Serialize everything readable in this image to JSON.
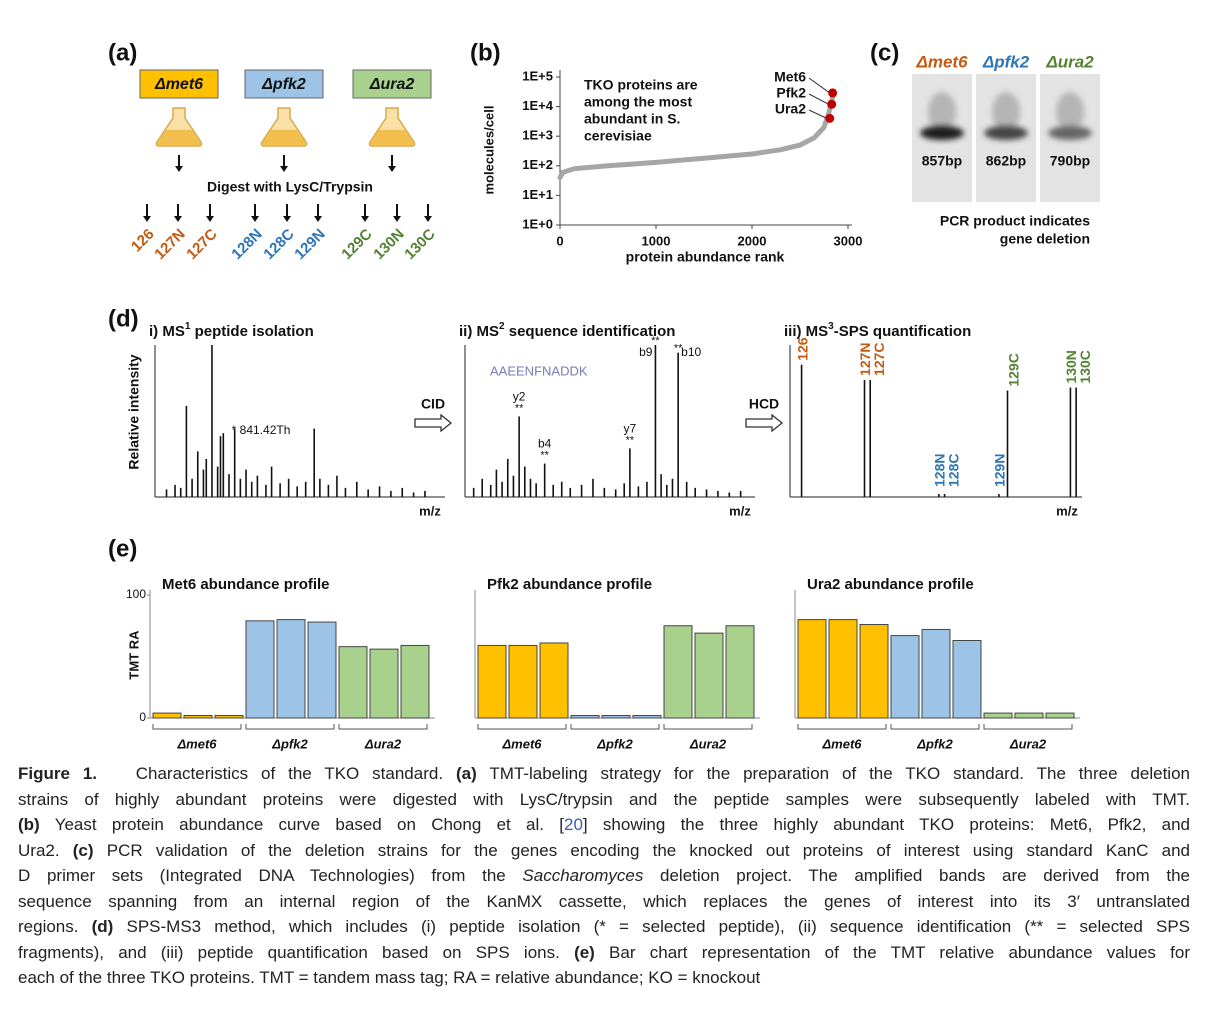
{
  "panels": {
    "a": {
      "label": "(a)",
      "strains": [
        {
          "name": "Δmet6",
          "color": "#ffc000"
        },
        {
          "name": "Δpfk2",
          "color": "#9dc3e6"
        },
        {
          "name": "Δura2",
          "color": "#a9d18e"
        }
      ],
      "step": "Digest with LysC/Trypsin",
      "tags": [
        {
          "name": "126",
          "color": "#c55a11"
        },
        {
          "name": "127N",
          "color": "#c55a11"
        },
        {
          "name": "127C",
          "color": "#c55a11"
        },
        {
          "name": "128N",
          "color": "#2e75b6"
        },
        {
          "name": "128C",
          "color": "#2e75b6"
        },
        {
          "name": "129N",
          "color": "#2e75b6"
        },
        {
          "name": "129C",
          "color": "#548235"
        },
        {
          "name": "130N",
          "color": "#548235"
        },
        {
          "name": "130C",
          "color": "#548235"
        }
      ]
    },
    "b": {
      "label": "(b)"
    },
    "c": {
      "label": "(c)",
      "lanes": [
        {
          "name": "Δmet6",
          "color": "#c55a11",
          "size": "857bp"
        },
        {
          "name": "Δpfk2",
          "color": "#2e75b6",
          "size": "862bp"
        },
        {
          "name": "Δura2",
          "color": "#548235",
          "size": "790bp"
        }
      ],
      "note": [
        "PCR product indicates",
        "gene deletion"
      ]
    },
    "d": {
      "label": "(d)",
      "arrows": [
        "CID",
        "HCD"
      ]
    },
    "e": {
      "label": "(e)"
    }
  },
  "chart_data": [
    {
      "type": "line",
      "log_scale": true,
      "ylabel": "molecules/cell",
      "xlabel": "protein abundance rank",
      "annotation": [
        "TKO proteins are",
        "among the most",
        "abundant in S.",
        "cerevisiae"
      ],
      "xlim": [
        0,
        3000
      ],
      "xticks": [
        0,
        1000,
        2000,
        3000
      ],
      "ylim": [
        1,
        100000
      ],
      "yticks": [
        {
          "value": 1,
          "label": "1E+0"
        },
        {
          "value": 10,
          "label": "1E+1"
        },
        {
          "value": 100,
          "label": "1E+2"
        },
        {
          "value": 1000,
          "label": "1E+3"
        },
        {
          "value": 10000,
          "label": "1E+4"
        },
        {
          "value": 100000,
          "label": "1E+5"
        }
      ],
      "x": [
        0,
        30,
        150,
        500,
        1000,
        1500,
        2000,
        2300,
        2500,
        2650,
        2750,
        2800,
        2850
      ],
      "series": [
        {
          "color": "#a6a6a6",
          "values": [
            40,
            60,
            80,
            100,
            130,
            180,
            250,
            350,
            500,
            900,
            2000,
            6000,
            30000
          ]
        }
      ],
      "highlight_color": "#c00000",
      "highlights": [
        {
          "name": "Met6",
          "x": 2840,
          "value": 29000
        },
        {
          "name": "Pfk2",
          "x": 2830,
          "value": 12000
        },
        {
          "name": "Ura2",
          "x": 2810,
          "value": 4000
        }
      ]
    },
    {
      "type": "spectrum",
      "title": [
        "i) MS",
        "1",
        " peptide isolation"
      ],
      "ylabel": "Relative intensity",
      "xlabel": "m/z",
      "xlim": [
        0,
        100
      ],
      "ylim": [
        0,
        100
      ],
      "mz": [
        3,
        6,
        8,
        10,
        12,
        14,
        16,
        17,
        19,
        21,
        22,
        23,
        25,
        27,
        29,
        31,
        33,
        35,
        38,
        40,
        43,
        46,
        49,
        52,
        55,
        57,
        60,
        63,
        66,
        70,
        74,
        78,
        82,
        86,
        90,
        94
      ],
      "intensity": [
        5,
        8,
        6,
        60,
        12,
        30,
        18,
        25,
        100,
        20,
        40,
        42,
        15,
        45,
        12,
        18,
        10,
        14,
        8,
        20,
        9,
        12,
        7,
        10,
        45,
        12,
        8,
        14,
        6,
        10,
        5,
        7,
        4,
        6,
        3,
        4
      ],
      "annotation": {
        "peak": 13,
        "text": "* 841.42Th"
      }
    },
    {
      "type": "spectrum",
      "title": [
        "ii) MS",
        "2",
        " sequence identification"
      ],
      "xlabel": "m/z",
      "xlim": [
        0,
        100
      ],
      "ylim": [
        0,
        100
      ],
      "sequence": "AAEENFNADDK",
      "mz": [
        2,
        5,
        8,
        10,
        12,
        14,
        16,
        18,
        20,
        22,
        24,
        27,
        30,
        33,
        36,
        40,
        44,
        48,
        52,
        55,
        57,
        60,
        63,
        66,
        68,
        70,
        72,
        74,
        77,
        80,
        84,
        88,
        92,
        96
      ],
      "intensity": [
        6,
        12,
        8,
        18,
        10,
        25,
        14,
        53,
        20,
        12,
        9,
        22,
        8,
        10,
        6,
        8,
        12,
        6,
        5,
        9,
        32,
        7,
        10,
        100,
        15,
        8,
        12,
        95,
        10,
        6,
        5,
        4,
        3,
        4
      ],
      "peak_labels": [
        {
          "peak": 7,
          "text": "y2",
          "mark": "**"
        },
        {
          "peak": 11,
          "text": "b4",
          "mark": "**"
        },
        {
          "peak": 20,
          "text": "y7",
          "mark": "**"
        },
        {
          "peak": 23,
          "text": "b9",
          "mark": "**"
        },
        {
          "peak": 27,
          "text": "b10",
          "mark": "**"
        }
      ]
    },
    {
      "type": "spectrum",
      "title": [
        "iii) MS",
        "3",
        "-SPS quantification"
      ],
      "xlabel": "m/z",
      "xlim": [
        0,
        100
      ],
      "ylim": [
        0,
        100
      ],
      "mz": [
        3,
        25,
        27,
        51,
        53,
        72,
        75,
        97,
        99
      ],
      "intensity": [
        87,
        77,
        77,
        2,
        2,
        2,
        70,
        72,
        72
      ],
      "labels": [
        "126",
        "127N",
        "127C",
        "128N",
        "128C",
        "129N",
        "129C",
        "130N",
        "130C"
      ],
      "label_colors": [
        "#c55a11",
        "#c55a11",
        "#c55a11",
        "#2e75b6",
        "#2e75b6",
        "#2e75b6",
        "#548235",
        "#548235",
        "#548235"
      ]
    },
    {
      "type": "bar",
      "title": "Met6 abundance profile",
      "ylabel": "TMT RA",
      "ylim": [
        0,
        100
      ],
      "yticks": [
        0,
        100
      ],
      "groups": [
        "Δmet6",
        "Δpfk2",
        "Δura2"
      ],
      "group_colors": [
        "#ffc000",
        "#9dc3e6",
        "#a9d18e"
      ],
      "values": [
        4,
        2,
        2,
        79,
        80,
        78,
        58,
        56,
        59
      ]
    },
    {
      "type": "bar",
      "title": "Pfk2 abundance profile",
      "ylim": [
        0,
        100
      ],
      "groups": [
        "Δmet6",
        "Δpfk2",
        "Δura2"
      ],
      "group_colors": [
        "#ffc000",
        "#9dc3e6",
        "#a9d18e"
      ],
      "values": [
        59,
        59,
        61,
        2,
        2,
        2,
        75,
        69,
        75
      ]
    },
    {
      "type": "bar",
      "title": "Ura2 abundance profile",
      "ylim": [
        0,
        100
      ],
      "groups": [
        "Δmet6",
        "Δpfk2",
        "Δura2"
      ],
      "group_colors": [
        "#ffc000",
        "#9dc3e6",
        "#a9d18e"
      ],
      "values": [
        80,
        80,
        76,
        67,
        72,
        63,
        4,
        4,
        4
      ]
    }
  ],
  "caption": {
    "lines": [
      [
        {
          "text": "Figure 1.",
          "style": "bold"
        },
        {
          "text": "   Characteristics of the TKO standard. "
        },
        {
          "text": "(a)",
          "style": "bold"
        },
        {
          "text": " TMT-labeling strategy for the preparation of the TKO standard. The three deletion"
        }
      ],
      [
        {
          "text": "strains of highly abundant proteins were digested with LysC/trypsin and the peptide samples were subsequently labeled with TMT."
        }
      ],
      [
        {
          "text": "(b)",
          "style": "bold"
        },
        {
          "text": " Yeast protein abundance curve based on Chong et al. ["
        },
        {
          "text": "20",
          "style": "link"
        },
        {
          "text": "] showing the three highly abundant TKO proteins: Met6, Pfk2, and"
        }
      ],
      [
        {
          "text": "Ura2. "
        },
        {
          "text": "(c)",
          "style": "bold"
        },
        {
          "text": " PCR validation of the deletion strains for the genes encoding the knocked out proteins of interest using standard KanC and"
        }
      ],
      [
        {
          "text": "D primer sets (Integrated DNA Technologies) from the "
        },
        {
          "text": "Saccharomyces",
          "style": "italic"
        },
        {
          "text": " deletion project. The amplified bands are derived from the"
        }
      ],
      [
        {
          "text": "sequence spanning from an internal region of the KanMX cassette, which replaces the genes of interest into its 3′ untranslated"
        }
      ],
      [
        {
          "text": "regions. "
        },
        {
          "text": "(d)",
          "style": "bold"
        },
        {
          "text": " SPS-MS3 method, which includes (i) peptide isolation (* = selected peptide), (ii) sequence identification (** = selected SPS"
        }
      ],
      [
        {
          "text": "fragments), and (iii) peptide quantification based on SPS ions. "
        },
        {
          "text": "(e)",
          "style": "bold"
        },
        {
          "text": " Bar chart representation of the TMT relative abundance values for"
        }
      ],
      [
        {
          "text": "each of the three TKO proteins. TMT = tandem mass tag; RA = relative abundance; KO = knockout"
        }
      ]
    ]
  }
}
